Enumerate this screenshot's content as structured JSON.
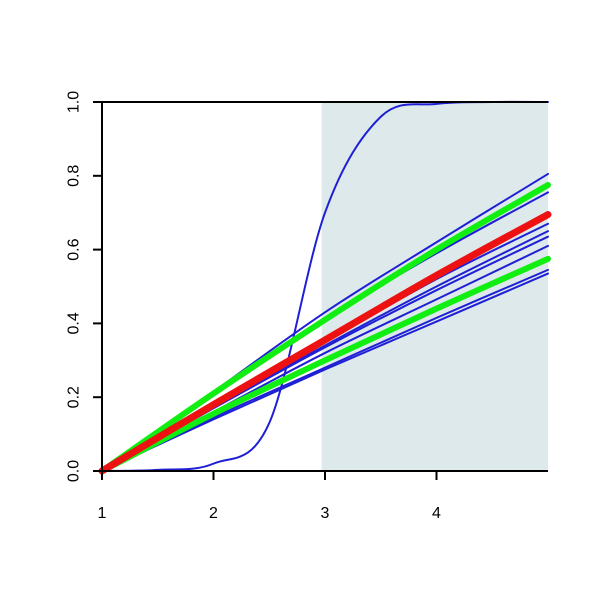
{
  "chart_data": {
    "type": "line",
    "title": "",
    "xlabel": "",
    "ylabel": "",
    "xlim": [
      1,
      5
    ],
    "ylim": [
      0,
      1
    ],
    "xticks": [
      1,
      2,
      3,
      4
    ],
    "yticks": [
      0.0,
      0.2,
      0.4,
      0.6,
      0.8,
      1.0
    ],
    "x_tick_labels": [
      "1",
      "2",
      "3",
      "4"
    ],
    "y_tick_labels": [
      "0.0",
      "0.2",
      "0.4",
      "0.6",
      "0.8",
      "1.0"
    ],
    "grid": false,
    "legend": "none",
    "shaded_region": {
      "x_from": 2.97,
      "x_to": 5,
      "color": "#dde9ea"
    },
    "colors": {
      "thin_lines": "#1f1fd6",
      "green": "#11ee11",
      "red": "#ee1111",
      "axis": "#000000"
    },
    "series": [
      {
        "style": "thin-blue",
        "x": [
          1,
          1.5,
          2,
          2.5,
          3,
          3.5,
          4,
          4.5,
          5
        ],
        "y": [
          0,
          0.003,
          0.02,
          0.13,
          0.7,
          0.96,
          0.995,
          1.0,
          1.0
        ]
      },
      {
        "style": "thin-blue",
        "x": [
          1,
          2,
          3,
          4,
          5
        ],
        "y": [
          0,
          0.215,
          0.43,
          0.62,
          0.805
        ]
      },
      {
        "style": "thin-blue",
        "x": [
          1,
          2,
          3,
          4,
          5
        ],
        "y": [
          0,
          0.205,
          0.41,
          0.59,
          0.755
        ]
      },
      {
        "style": "thin-blue",
        "x": [
          1,
          2,
          3,
          4,
          5
        ],
        "y": [
          0,
          0.18,
          0.35,
          0.52,
          0.67
        ]
      },
      {
        "style": "thin-blue",
        "x": [
          1,
          2,
          3,
          4,
          5
        ],
        "y": [
          0,
          0.175,
          0.34,
          0.5,
          0.65
        ]
      },
      {
        "style": "thin-blue",
        "x": [
          1,
          2,
          3,
          4,
          5
        ],
        "y": [
          0,
          0.17,
          0.335,
          0.49,
          0.635
        ]
      },
      {
        "style": "thin-blue",
        "x": [
          1,
          2,
          3,
          4,
          5
        ],
        "y": [
          0,
          0.16,
          0.32,
          0.465,
          0.61
        ]
      },
      {
        "style": "thin-blue",
        "x": [
          1,
          2,
          3,
          4,
          5
        ],
        "y": [
          0,
          0.145,
          0.28,
          0.415,
          0.545
        ]
      },
      {
        "style": "thin-blue",
        "x": [
          1,
          2,
          3,
          4,
          5
        ],
        "y": [
          0,
          0.14,
          0.275,
          0.405,
          0.535
        ]
      },
      {
        "style": "thick-green",
        "x": [
          1,
          2,
          3,
          4,
          5
        ],
        "y": [
          0,
          0.21,
          0.41,
          0.6,
          0.775
        ]
      },
      {
        "style": "thick-green",
        "x": [
          1,
          2,
          3,
          4,
          5
        ],
        "y": [
          0,
          0.155,
          0.3,
          0.44,
          0.575
        ]
      },
      {
        "style": "thick-red",
        "x": [
          1,
          2,
          3,
          4,
          5
        ],
        "y": [
          0,
          0.18,
          0.355,
          0.53,
          0.695
        ]
      }
    ]
  }
}
